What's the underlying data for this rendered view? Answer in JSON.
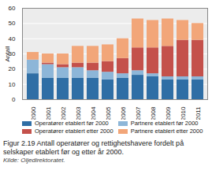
{
  "chart_data": {
    "type": "bar",
    "stacked": true,
    "title": "Figur 2.19 Antall operatører og rettighetshavere fordelt på selskaper etablert før og etter år 2000.",
    "source": "Kilde: Oljedirektoratet.",
    "y_label": "Antall",
    "categories": [
      "2000",
      "2001",
      "2002",
      "2003",
      "2004",
      "2005",
      "2006",
      "2007",
      "2008",
      "2009",
      "2010",
      "2011"
    ],
    "series": [
      {
        "name": "Operatører etablert før 2000",
        "color": "#2f6ea5",
        "values": [
          17,
          14,
          14,
          14,
          14,
          13,
          14,
          16,
          15,
          13,
          13,
          13
        ]
      },
      {
        "name": "Partnere etablert før 2000",
        "color": "#8db6d8",
        "values": [
          9,
          9,
          7,
          7,
          5,
          5,
          3,
          3,
          2,
          2,
          2,
          2
        ]
      },
      {
        "name": "Operatører etablert etter 2000",
        "color": "#c4514b",
        "values": [
          0,
          1,
          2,
          3,
          5,
          7,
          10,
          15,
          17,
          20,
          24,
          24
        ]
      },
      {
        "name": "Partnere etablert etter 2000",
        "color": "#f2a679",
        "values": [
          5,
          6,
          7,
          11,
          11,
          11,
          13,
          19,
          18,
          18,
          13,
          11
        ]
      }
    ],
    "ylim": [
      0,
      60
    ],
    "yticks": [
      0,
      10,
      20,
      30,
      40,
      50,
      60
    ],
    "grid": true,
    "legend": "bottom"
  }
}
